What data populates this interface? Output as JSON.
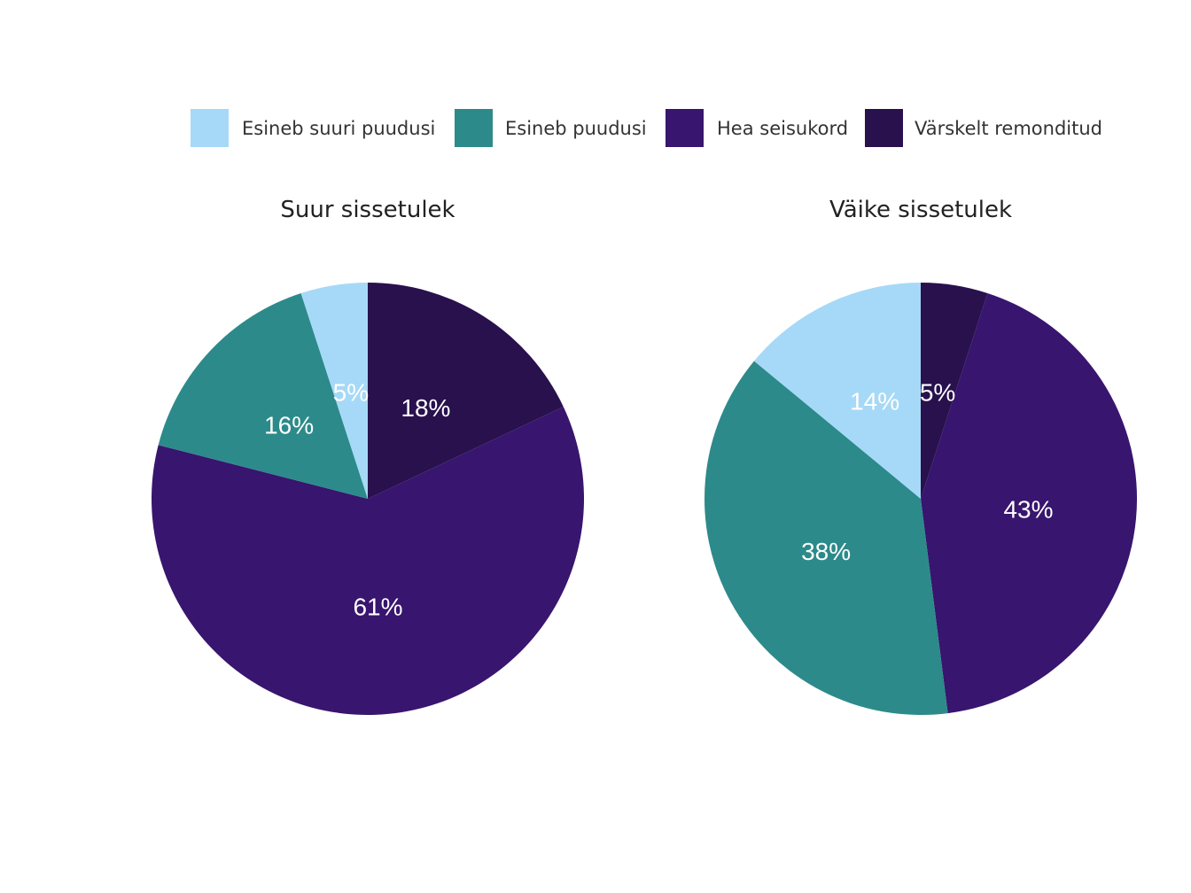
{
  "colors": {
    "Esineb suuri puudusi": "#a6d9f7",
    "Esineb puudusi": "#2c8a8a",
    "Hea seisukord": "#38156e",
    "Värskelt remonditud": "#28114d"
  },
  "chart_data": {
    "type": "pie",
    "legend": {
      "placement": "top",
      "entries": [
        "Esineb suuri puudusi",
        "Esineb puudusi",
        "Hea seisukord",
        "Värskelt remonditud"
      ]
    },
    "pies": [
      {
        "title": "Suur sissetulek",
        "slices": [
          {
            "label": "Värskelt remonditud",
            "value": 18,
            "text": "18%"
          },
          {
            "label": "Hea seisukord",
            "value": 61,
            "text": "61%"
          },
          {
            "label": "Esineb puudusi",
            "value": 16,
            "text": "16%"
          },
          {
            "label": "Esineb suuri puudusi",
            "value": 5,
            "text": "5%"
          }
        ]
      },
      {
        "title": "Väike sissetulek",
        "slices": [
          {
            "label": "Värskelt remonditud",
            "value": 5,
            "text": "5%"
          },
          {
            "label": "Hea seisukord",
            "value": 43,
            "text": "43%"
          },
          {
            "label": "Esineb puudusi",
            "value": 38,
            "text": "38%"
          },
          {
            "label": "Esineb suuri puudusi",
            "value": 14,
            "text": "14%"
          }
        ]
      }
    ]
  }
}
